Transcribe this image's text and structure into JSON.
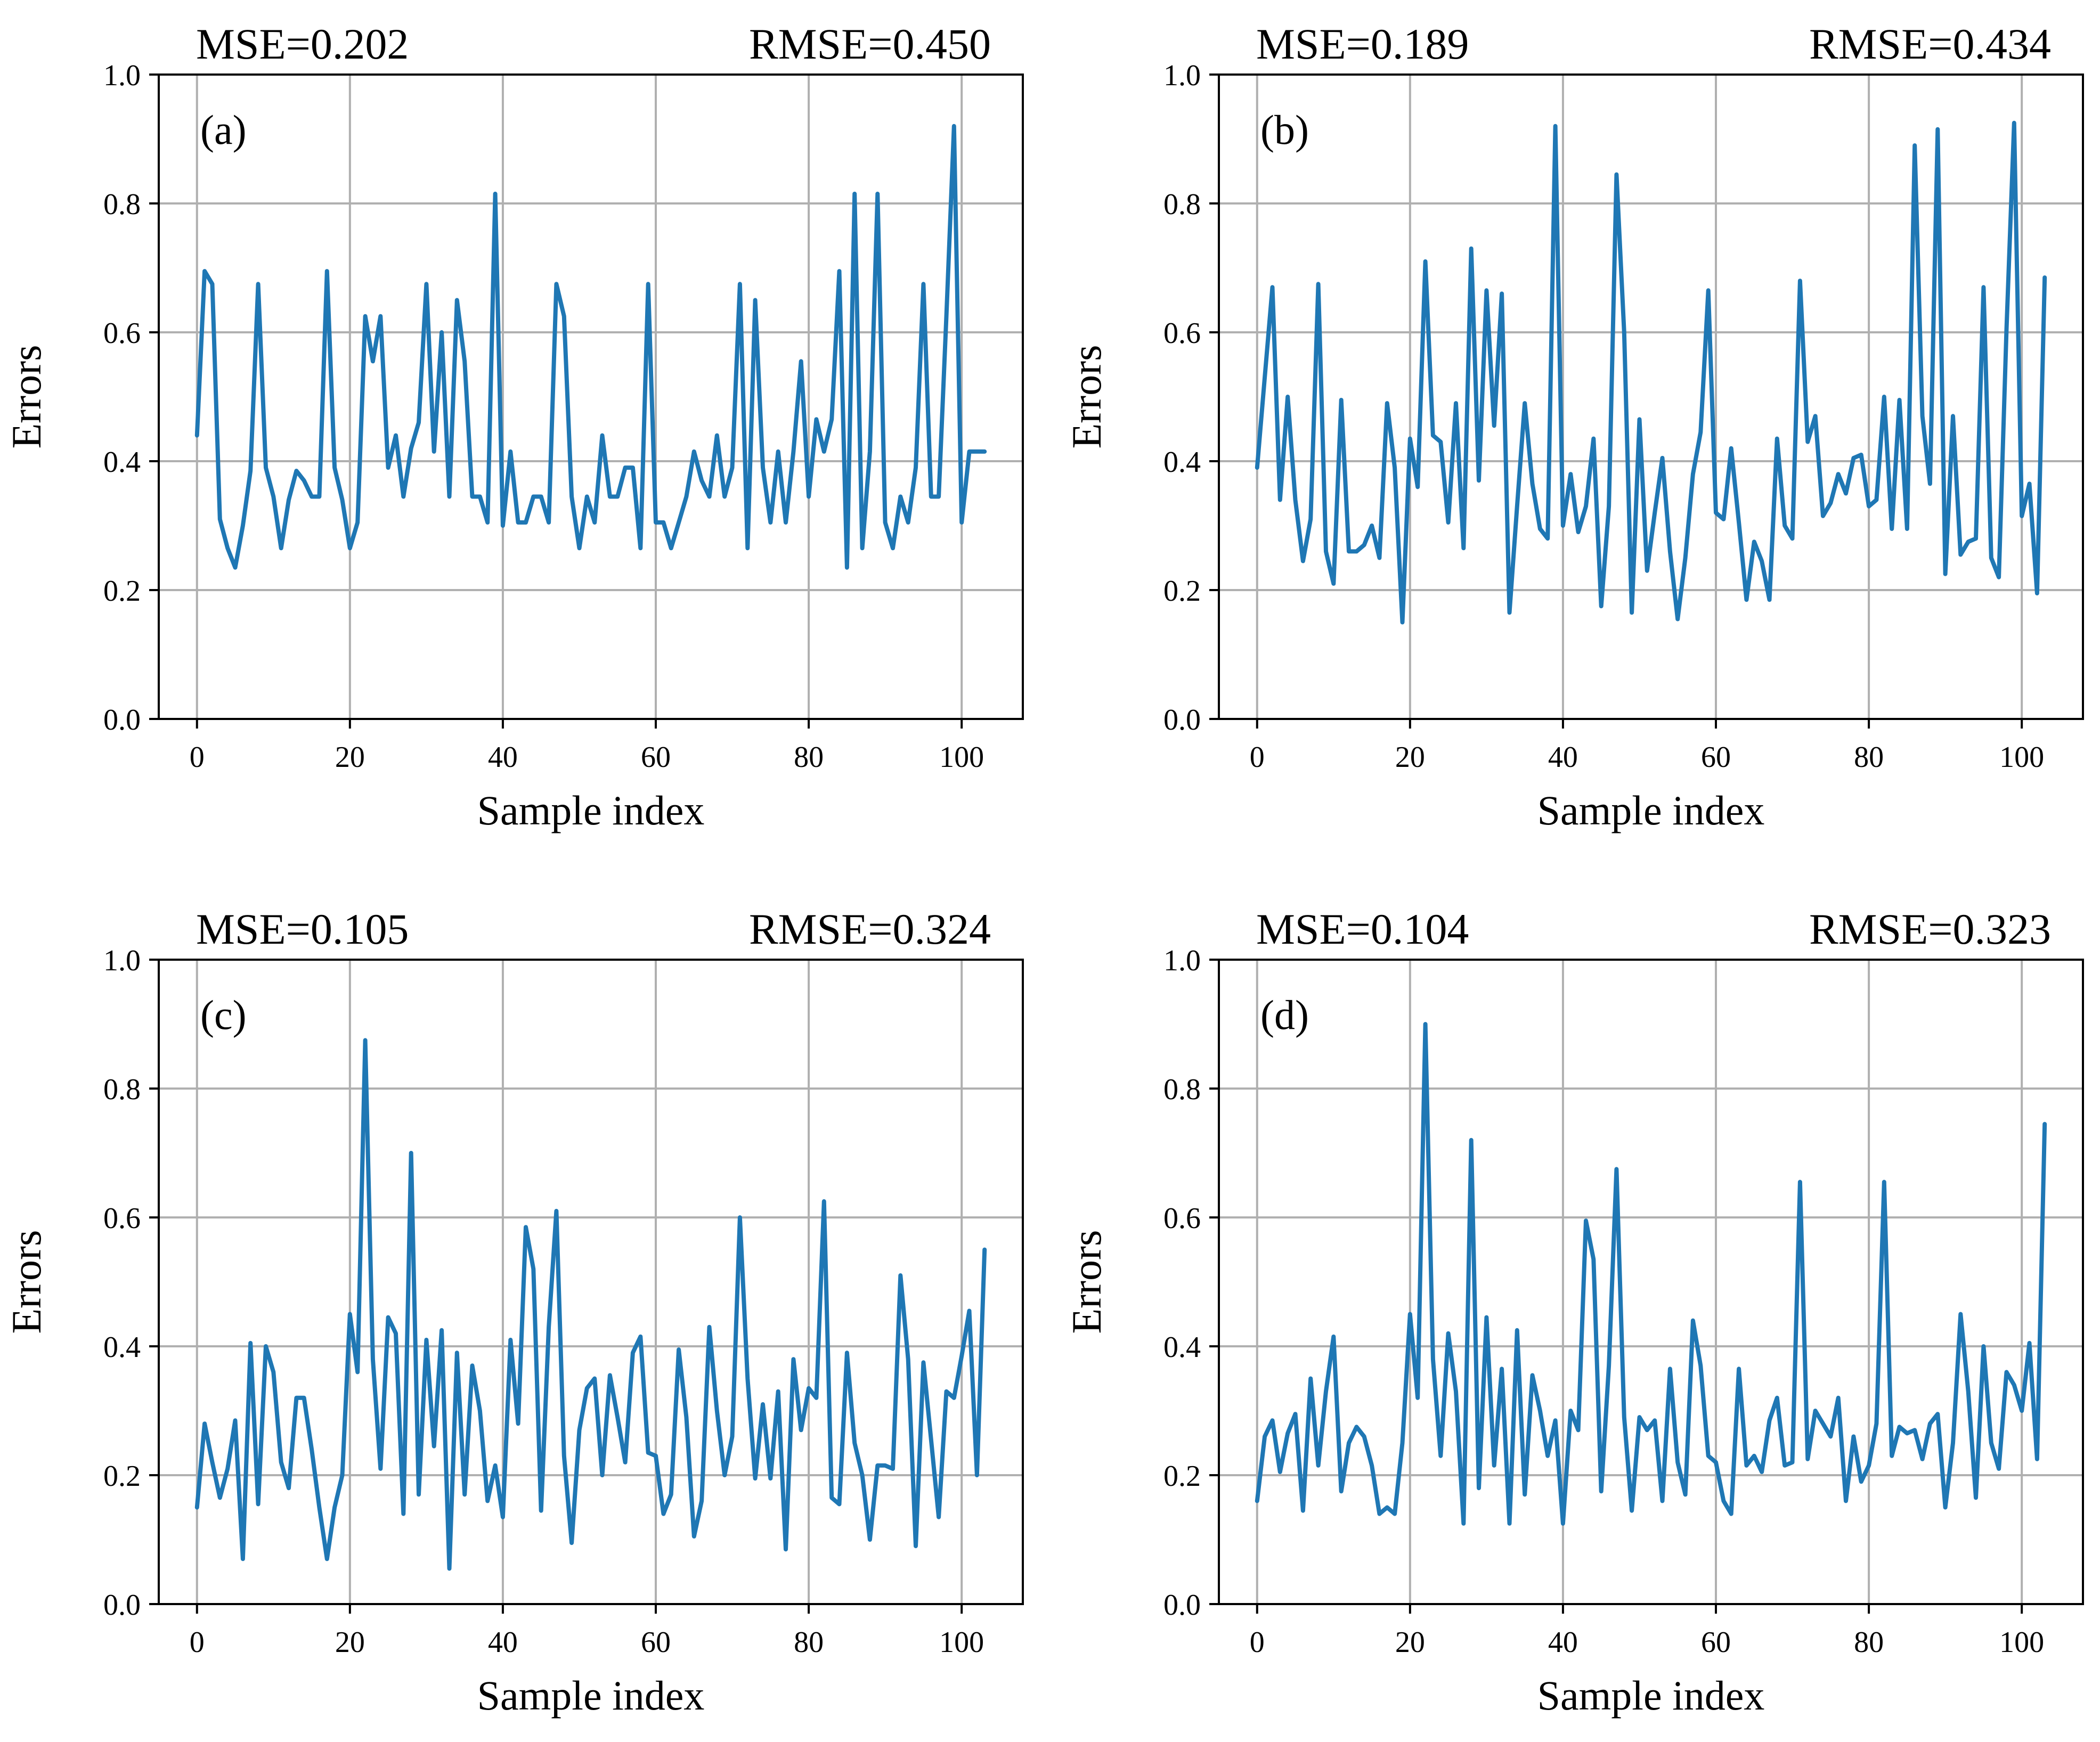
{
  "colors": {
    "line": "#1f77b4",
    "grid": "#b0b0b0",
    "frame": "#000000",
    "background": "#ffffff"
  },
  "chart_data": [
    {
      "type": "line",
      "panel_label": "(a)",
      "mse_label": "MSE=0.202",
      "rmse_label": "RMSE=0.450",
      "xlabel": "Sample index",
      "ylabel": "Errors",
      "xlim": [
        -5,
        108
      ],
      "ylim": [
        0,
        1.0
      ],
      "xticks": [
        0,
        20,
        40,
        60,
        80,
        100
      ],
      "xtick_labels": [
        "0",
        "20",
        "40",
        "60",
        "80",
        "100"
      ],
      "yticks": [
        0,
        0.2,
        0.4,
        0.6,
        0.8,
        1.0
      ],
      "ytick_labels": [
        "0.0",
        "0.2",
        "0.4",
        "0.6",
        "0.8",
        "1.0"
      ],
      "grid": true,
      "series": [
        {
          "name": "errors",
          "x_start": 0,
          "values": [
            0.44,
            0.695,
            0.675,
            0.31,
            0.265,
            0.235,
            0.3,
            0.385,
            0.675,
            0.39,
            0.345,
            0.265,
            0.34,
            0.385,
            0.37,
            0.345,
            0.345,
            0.695,
            0.39,
            0.34,
            0.265,
            0.305,
            0.625,
            0.555,
            0.625,
            0.39,
            0.44,
            0.345,
            0.42,
            0.46,
            0.675,
            0.415,
            0.6,
            0.345,
            0.65,
            0.555,
            0.345,
            0.345,
            0.305,
            0.815,
            0.3,
            0.415,
            0.305,
            0.305,
            0.345,
            0.345,
            0.305,
            0.675,
            0.625,
            0.345,
            0.265,
            0.345,
            0.305,
            0.44,
            0.345,
            0.345,
            0.39,
            0.39,
            0.265,
            0.675,
            0.305,
            0.305,
            0.265,
            0.305,
            0.345,
            0.415,
            0.37,
            0.345,
            0.44,
            0.345,
            0.39,
            0.675,
            0.265,
            0.65,
            0.39,
            0.305,
            0.415,
            0.305,
            0.415,
            0.555,
            0.345,
            0.465,
            0.415,
            0.465,
            0.695,
            0.235,
            0.815,
            0.265,
            0.415,
            0.815,
            0.305,
            0.265,
            0.345,
            0.305,
            0.39,
            0.675,
            0.345,
            0.345,
            0.625,
            0.92,
            0.305,
            0.415,
            0.415,
            0.415
          ]
        }
      ]
    },
    {
      "type": "line",
      "panel_label": "(b)",
      "mse_label": "MSE=0.189",
      "rmse_label": "RMSE=0.434",
      "xlabel": "Sample index",
      "ylabel": "Errors",
      "xlim": [
        -5,
        108
      ],
      "ylim": [
        0,
        1.0
      ],
      "xticks": [
        0,
        20,
        40,
        60,
        80,
        100
      ],
      "xtick_labels": [
        "0",
        "20",
        "40",
        "60",
        "80",
        "100"
      ],
      "yticks": [
        0,
        0.2,
        0.4,
        0.6,
        0.8,
        1.0
      ],
      "ytick_labels": [
        "0.0",
        "0.2",
        "0.4",
        "0.6",
        "0.8",
        "1.0"
      ],
      "grid": true,
      "series": [
        {
          "name": "errors",
          "x_start": 0,
          "values": [
            0.39,
            0.53,
            0.67,
            0.34,
            0.5,
            0.34,
            0.245,
            0.31,
            0.675,
            0.26,
            0.21,
            0.495,
            0.26,
            0.26,
            0.27,
            0.3,
            0.25,
            0.49,
            0.39,
            0.15,
            0.435,
            0.36,
            0.71,
            0.44,
            0.43,
            0.305,
            0.49,
            0.265,
            0.73,
            0.37,
            0.665,
            0.455,
            0.66,
            0.165,
            0.33,
            0.49,
            0.365,
            0.295,
            0.28,
            0.92,
            0.3,
            0.38,
            0.29,
            0.33,
            0.435,
            0.175,
            0.33,
            0.845,
            0.6,
            0.165,
            0.465,
            0.23,
            0.32,
            0.405,
            0.26,
            0.155,
            0.25,
            0.38,
            0.445,
            0.665,
            0.32,
            0.31,
            0.42,
            0.305,
            0.185,
            0.275,
            0.245,
            0.185,
            0.435,
            0.3,
            0.28,
            0.68,
            0.43,
            0.47,
            0.315,
            0.335,
            0.38,
            0.35,
            0.405,
            0.41,
            0.33,
            0.34,
            0.5,
            0.295,
            0.495,
            0.295,
            0.89,
            0.47,
            0.365,
            0.915,
            0.225,
            0.47,
            0.255,
            0.275,
            0.28,
            0.67,
            0.25,
            0.22,
            0.605,
            0.925,
            0.315,
            0.365,
            0.195,
            0.685
          ]
        }
      ]
    },
    {
      "type": "line",
      "panel_label": "(c)",
      "mse_label": "MSE=0.105",
      "rmse_label": "RMSE=0.324",
      "xlabel": "Sample index",
      "ylabel": "Errors",
      "xlim": [
        -5,
        108
      ],
      "ylim": [
        0,
        1.0
      ],
      "xticks": [
        0,
        20,
        40,
        60,
        80,
        100
      ],
      "xtick_labels": [
        "0",
        "20",
        "40",
        "60",
        "80",
        "100"
      ],
      "yticks": [
        0,
        0.2,
        0.4,
        0.6,
        0.8,
        1.0
      ],
      "ytick_labels": [
        "0.0",
        "0.2",
        "0.4",
        "0.6",
        "0.8",
        "1.0"
      ],
      "grid": true,
      "series": [
        {
          "name": "errors",
          "x_start": 0,
          "values": [
            0.15,
            0.28,
            0.22,
            0.165,
            0.21,
            0.285,
            0.07,
            0.405,
            0.155,
            0.4,
            0.36,
            0.22,
            0.18,
            0.32,
            0.32,
            0.24,
            0.15,
            0.07,
            0.15,
            0.2,
            0.45,
            0.36,
            0.875,
            0.38,
            0.21,
            0.445,
            0.42,
            0.14,
            0.7,
            0.17,
            0.41,
            0.245,
            0.425,
            0.055,
            0.39,
            0.17,
            0.37,
            0.3,
            0.16,
            0.215,
            0.135,
            0.41,
            0.28,
            0.585,
            0.52,
            0.145,
            0.43,
            0.61,
            0.23,
            0.095,
            0.27,
            0.335,
            0.35,
            0.2,
            0.355,
            0.29,
            0.22,
            0.39,
            0.415,
            0.235,
            0.23,
            0.14,
            0.17,
            0.395,
            0.29,
            0.105,
            0.16,
            0.43,
            0.3,
            0.2,
            0.26,
            0.6,
            0.35,
            0.195,
            0.31,
            0.195,
            0.33,
            0.085,
            0.38,
            0.27,
            0.335,
            0.32,
            0.625,
            0.165,
            0.155,
            0.39,
            0.25,
            0.2,
            0.1,
            0.215,
            0.215,
            0.21,
            0.51,
            0.38,
            0.09,
            0.375,
            0.255,
            0.135,
            0.33,
            0.32,
            0.385,
            0.455,
            0.2,
            0.55
          ]
        }
      ]
    },
    {
      "type": "line",
      "panel_label": "(d)",
      "mse_label": "MSE=0.104",
      "rmse_label": "RMSE=0.323",
      "xlabel": "Sample index",
      "ylabel": "Errors",
      "xlim": [
        -5,
        108
      ],
      "ylim": [
        0,
        1.0
      ],
      "xticks": [
        0,
        20,
        40,
        60,
        80,
        100
      ],
      "xtick_labels": [
        "0",
        "20",
        "40",
        "60",
        "80",
        "100"
      ],
      "yticks": [
        0,
        0.2,
        0.4,
        0.6,
        0.8,
        1.0
      ],
      "ytick_labels": [
        "0.0",
        "0.2",
        "0.4",
        "0.6",
        "0.8",
        "1.0"
      ],
      "grid": true,
      "series": [
        {
          "name": "errors",
          "x_start": 0,
          "values": [
            0.16,
            0.26,
            0.285,
            0.205,
            0.265,
            0.295,
            0.145,
            0.35,
            0.215,
            0.33,
            0.415,
            0.175,
            0.25,
            0.275,
            0.26,
            0.215,
            0.14,
            0.15,
            0.14,
            0.25,
            0.45,
            0.32,
            0.9,
            0.38,
            0.23,
            0.42,
            0.33,
            0.125,
            0.72,
            0.18,
            0.445,
            0.215,
            0.365,
            0.125,
            0.425,
            0.17,
            0.355,
            0.3,
            0.23,
            0.285,
            0.125,
            0.3,
            0.27,
            0.595,
            0.535,
            0.175,
            0.37,
            0.675,
            0.29,
            0.145,
            0.29,
            0.27,
            0.285,
            0.16,
            0.365,
            0.22,
            0.17,
            0.44,
            0.37,
            0.23,
            0.22,
            0.16,
            0.14,
            0.365,
            0.215,
            0.23,
            0.205,
            0.285,
            0.32,
            0.215,
            0.22,
            0.655,
            0.225,
            0.3,
            0.28,
            0.26,
            0.32,
            0.16,
            0.26,
            0.19,
            0.215,
            0.28,
            0.655,
            0.23,
            0.275,
            0.265,
            0.27,
            0.225,
            0.28,
            0.295,
            0.15,
            0.25,
            0.45,
            0.33,
            0.165,
            0.4,
            0.25,
            0.21,
            0.36,
            0.34,
            0.3,
            0.405,
            0.225,
            0.745
          ]
        }
      ]
    }
  ]
}
